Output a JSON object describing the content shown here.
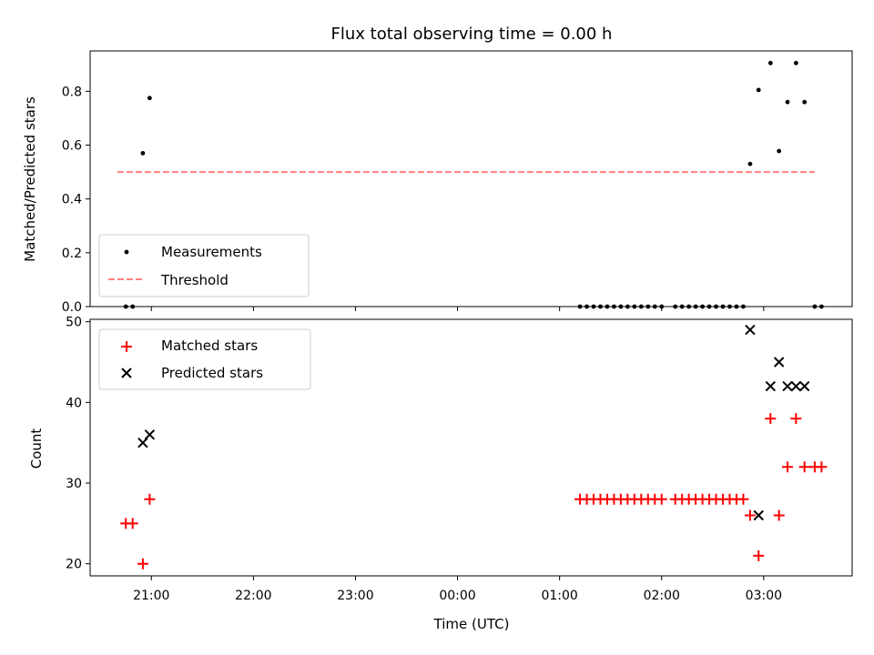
{
  "chart_data": [
    {
      "type": "scatter",
      "panel": "top",
      "title": "Flux total observing time = 0.00 h",
      "ylabel": "Matched/Predicted stars",
      "ylim": [
        0,
        0.95
      ],
      "yticks": [
        0.0,
        0.2,
        0.4,
        0.6,
        0.8
      ],
      "ytick_labels": [
        "0.0",
        "0.2",
        "0.4",
        "0.6",
        "0.8"
      ],
      "legend": "lower-left",
      "series": [
        {
          "name": "Measurements",
          "marker": "dot",
          "color": "#000000",
          "points": [
            [
              "20:45",
              0.0
            ],
            [
              "20:49",
              0.0
            ],
            [
              "20:55",
              0.57
            ],
            [
              "20:59",
              0.775
            ],
            [
              "01:12",
              0.0
            ],
            [
              "01:16",
              0.0
            ],
            [
              "01:20",
              0.0
            ],
            [
              "01:24",
              0.0
            ],
            [
              "01:28",
              0.0
            ],
            [
              "01:32",
              0.0
            ],
            [
              "01:36",
              0.0
            ],
            [
              "01:40",
              0.0
            ],
            [
              "01:44",
              0.0
            ],
            [
              "01:48",
              0.0
            ],
            [
              "01:52",
              0.0
            ],
            [
              "01:56",
              0.0
            ],
            [
              "02:00",
              0.0
            ],
            [
              "02:08",
              0.0
            ],
            [
              "02:12",
              0.0
            ],
            [
              "02:16",
              0.0
            ],
            [
              "02:20",
              0.0
            ],
            [
              "02:24",
              0.0
            ],
            [
              "02:28",
              0.0
            ],
            [
              "02:32",
              0.0
            ],
            [
              "02:36",
              0.0
            ],
            [
              "02:40",
              0.0
            ],
            [
              "02:44",
              0.0
            ],
            [
              "02:48",
              0.0
            ],
            [
              "02:52",
              0.53
            ],
            [
              "02:57",
              0.805
            ],
            [
              "03:04",
              0.905
            ],
            [
              "03:09",
              0.578
            ],
            [
              "03:14",
              0.76
            ],
            [
              "03:19",
              0.905
            ],
            [
              "03:24",
              0.76
            ],
            [
              "03:30",
              0.0
            ],
            [
              "03:34",
              0.0
            ]
          ]
        },
        {
          "name": "Threshold",
          "marker": "dashed-line",
          "color": "#ff7f7f",
          "points": [
            [
              "20:40",
              0.5
            ],
            [
              "03:30",
              0.5
            ]
          ]
        }
      ]
    },
    {
      "type": "scatter",
      "panel": "bottom",
      "xlabel": "Time (UTC)",
      "ylabel": "Count",
      "ylim": [
        18.5,
        50.3
      ],
      "yticks": [
        20,
        30,
        40,
        50
      ],
      "ytick_labels": [
        "20",
        "30",
        "40",
        "50"
      ],
      "xticks": [
        "21:00",
        "22:00",
        "23:00",
        "00:00",
        "01:00",
        "02:00",
        "03:00"
      ],
      "xlim": [
        "20:24",
        "03:52"
      ],
      "legend": "upper-left",
      "series": [
        {
          "name": "Matched stars",
          "marker": "plus",
          "color": "#ff0000",
          "points": [
            [
              "20:45",
              25
            ],
            [
              "20:49",
              25
            ],
            [
              "20:55",
              20
            ],
            [
              "20:59",
              28
            ],
            [
              "01:12",
              28
            ],
            [
              "01:16",
              28
            ],
            [
              "01:20",
              28
            ],
            [
              "01:24",
              28
            ],
            [
              "01:28",
              28
            ],
            [
              "01:32",
              28
            ],
            [
              "01:36",
              28
            ],
            [
              "01:40",
              28
            ],
            [
              "01:44",
              28
            ],
            [
              "01:48",
              28
            ],
            [
              "01:52",
              28
            ],
            [
              "01:56",
              28
            ],
            [
              "02:00",
              28
            ],
            [
              "02:08",
              28
            ],
            [
              "02:12",
              28
            ],
            [
              "02:16",
              28
            ],
            [
              "02:20",
              28
            ],
            [
              "02:24",
              28
            ],
            [
              "02:28",
              28
            ],
            [
              "02:32",
              28
            ],
            [
              "02:36",
              28
            ],
            [
              "02:40",
              28
            ],
            [
              "02:44",
              28
            ],
            [
              "02:48",
              28
            ],
            [
              "02:52",
              26
            ],
            [
              "02:57",
              21
            ],
            [
              "03:04",
              38
            ],
            [
              "03:09",
              26
            ],
            [
              "03:14",
              32
            ],
            [
              "03:19",
              38
            ],
            [
              "03:24",
              32
            ],
            [
              "03:30",
              32
            ],
            [
              "03:34",
              32
            ]
          ]
        },
        {
          "name": "Predicted stars",
          "marker": "x",
          "color": "#000000",
          "points": [
            [
              "20:55",
              35
            ],
            [
              "20:59",
              36
            ],
            [
              "02:52",
              49
            ],
            [
              "02:57",
              26
            ],
            [
              "03:04",
              42
            ],
            [
              "03:09",
              45
            ],
            [
              "03:14",
              42
            ],
            [
              "03:19",
              42
            ],
            [
              "03:24",
              42
            ]
          ]
        }
      ]
    }
  ]
}
